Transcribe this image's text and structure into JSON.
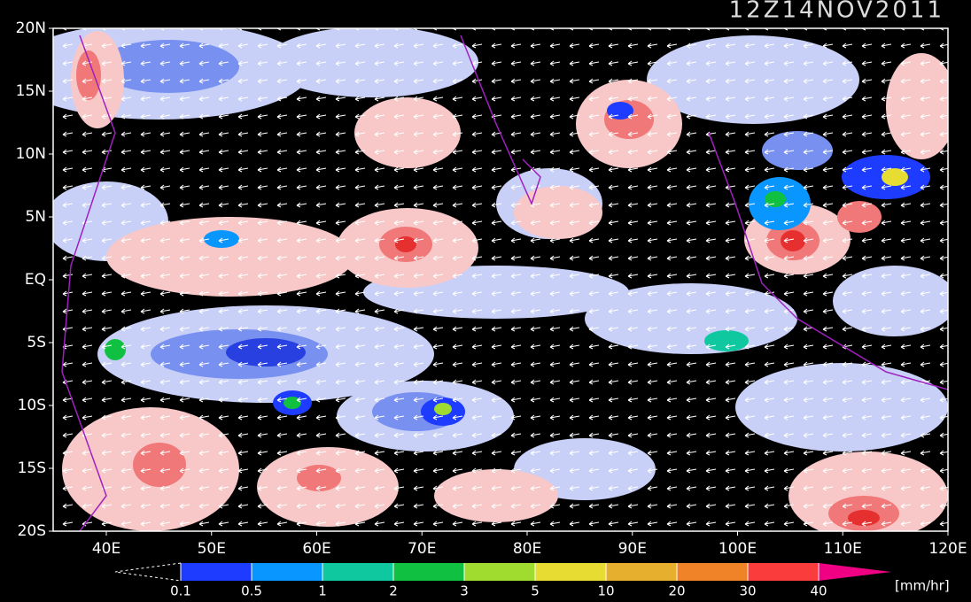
{
  "title": "12Z14NOV2011",
  "lat_labels": [
    "20N",
    "15N",
    "10N",
    "5N",
    "EQ",
    "5S",
    "10S",
    "15S",
    "20S"
  ],
  "lon_labels": [
    "40E",
    "50E",
    "60E",
    "70E",
    "80E",
    "90E",
    "100E",
    "110E",
    "120E"
  ],
  "colorbar": {
    "levels": [
      "0.1",
      "0.5",
      "1",
      "2",
      "3",
      "5",
      "10",
      "20",
      "30",
      "40"
    ],
    "colors": [
      "#1e3cff",
      "#0a96ff",
      "#10c8a0",
      "#10c040",
      "#a0dc30",
      "#e6dc32",
      "#e6af2d",
      "#f08228",
      "#fa3c3c"
    ],
    "over_color": "#f00082",
    "unit": "[mm/hr]"
  }
}
